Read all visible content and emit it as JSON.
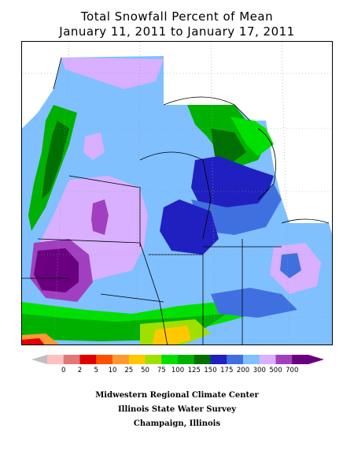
{
  "title_line1": "Total Snowfall Percent of Mean",
  "title_line2": "January 11, 2011 to January 17, 2011",
  "legend": {
    "labels": [
      "0",
      "2",
      "5",
      "10",
      "25",
      "50",
      "75",
      "100",
      "125",
      "150",
      "175",
      "200",
      "300",
      "500",
      "700"
    ],
    "colors": [
      "#ffc0c0",
      "#e07878",
      "#e00000",
      "#ff5000",
      "#ff9830",
      "#ffc800",
      "#a0e000",
      "#00e000",
      "#00b000",
      "#007000",
      "#2020c0",
      "#4070e0",
      "#80c0ff",
      "#d8b0ff",
      "#a040c0",
      "#6a0080"
    ],
    "low_arrow_color": "#c0c0c0",
    "high_arrow_color": "#6a0080"
  },
  "credits": [
    "Midwestern Regional Climate Center",
    "Illinois State Water Survey",
    "Champaign, Illinois"
  ],
  "map_colors": {
    "dominant": "#80c0ff",
    "lavender": "#d8b0ff",
    "purple": "#6a0080",
    "magenta": "#a040c0",
    "blue": "#4070e0",
    "darkblue": "#2020c0",
    "green": "#00b000",
    "darkgreen": "#007000",
    "brightgreen": "#00e000",
    "yellowgreen": "#a0e000",
    "yellow": "#ffc800",
    "orange": "#ff9830",
    "red": "#e00000"
  }
}
